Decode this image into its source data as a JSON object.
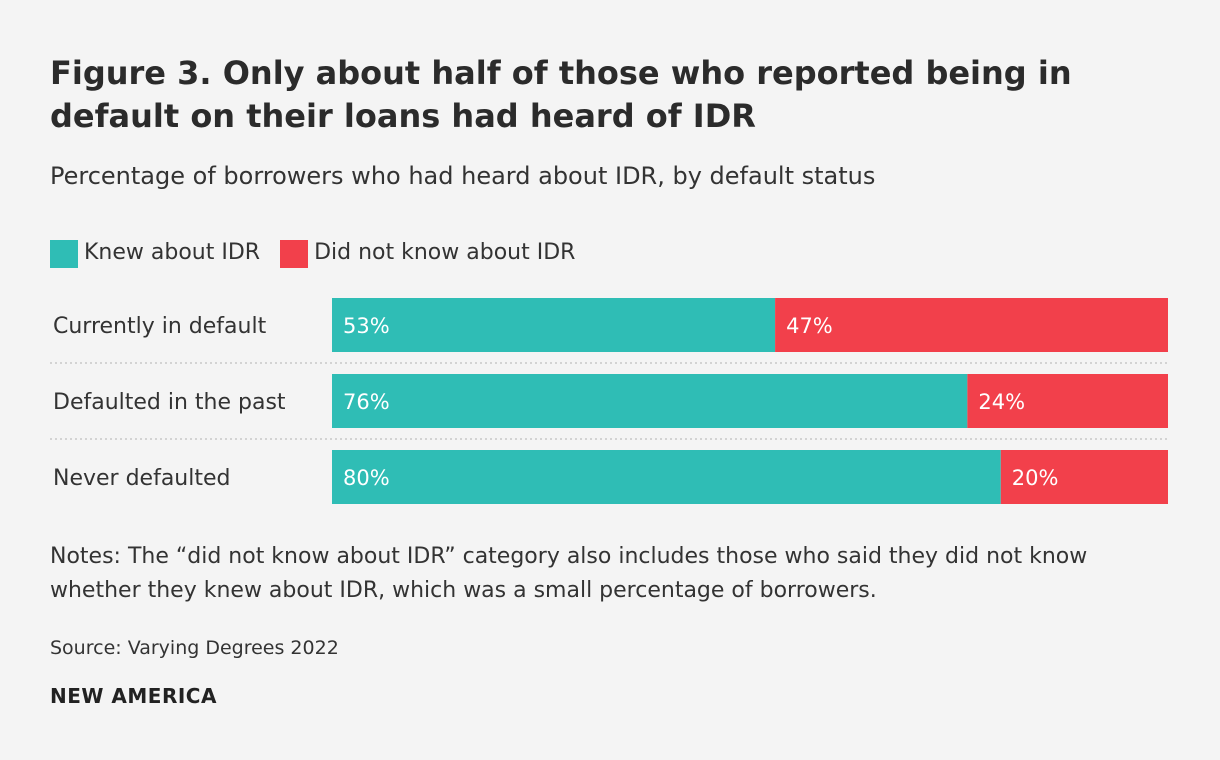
{
  "title": "Figure 3. Only about half of those who reported being in default on their loans had heard of IDR",
  "subtitle": "Percentage of borrowers who had heard about IDR, by default status",
  "legend": [
    {
      "label": "Knew about IDR",
      "color": "#2fbdb5"
    },
    {
      "label": "Did not know about IDR",
      "color": "#f2404b"
    }
  ],
  "chart_data": {
    "type": "bar",
    "orientation": "horizontal",
    "stacked": true,
    "categories": [
      "Currently in default",
      "Defaulted in the past",
      "Never defaulted"
    ],
    "series": [
      {
        "name": "Knew about IDR",
        "values": [
          53,
          76,
          80
        ],
        "color": "#2fbdb5"
      },
      {
        "name": "Did not know about IDR",
        "values": [
          47,
          24,
          20
        ],
        "color": "#f2404b"
      }
    ],
    "value_suffix": "%",
    "xlim": [
      0,
      100
    ],
    "grid": false,
    "legend_position": "top-left"
  },
  "notes": "Notes: The “did not know about IDR” category also includes those who said they did not know whether they knew about IDR, which was a small percentage of borrowers.",
  "source": "Source: Varying Degrees 2022",
  "brand": "NEW AMERICA"
}
